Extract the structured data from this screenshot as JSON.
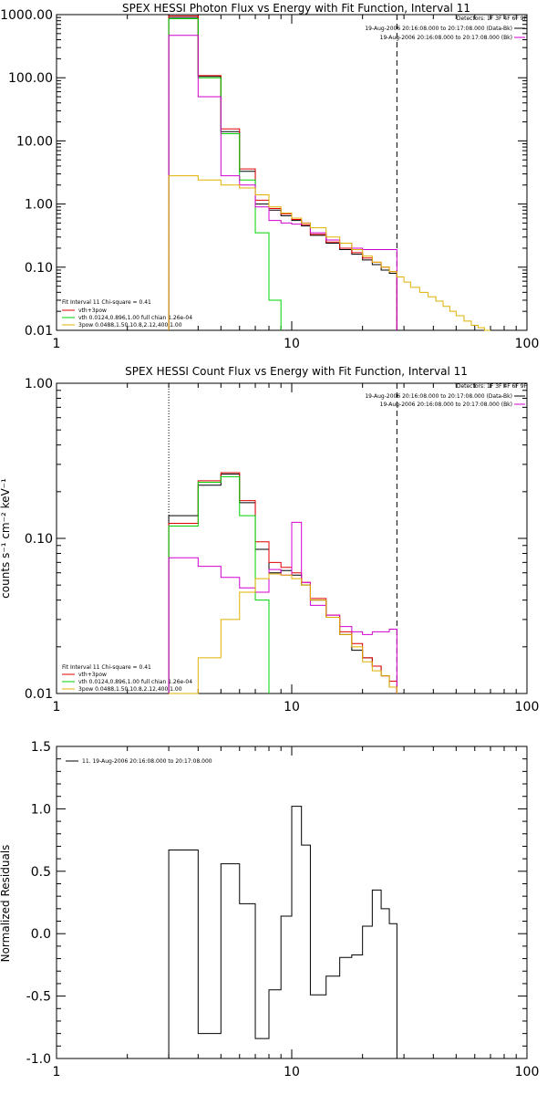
{
  "colors": {
    "data": "#000000",
    "total": "#e00000",
    "vth": "#00d000",
    "bkg": "#d000d0",
    "pow": "#e0b000"
  },
  "chart_data": [
    {
      "type": "line",
      "title": "SPEX HESSI Photon Flux vs Energy with Fit Function, Interval 11",
      "xlabel": "",
      "ylabel": "",
      "xlim": [
        1,
        100
      ],
      "ylim": [
        0.01,
        1000
      ],
      "xscale": "log",
      "yscale": "log",
      "xticks": [
        "1",
        "10",
        "100"
      ],
      "yticks": [
        "0.01",
        "0.10",
        "1.00",
        "10.00",
        "100.00",
        "1000.00"
      ],
      "vline_dotted": 3,
      "vline_dashed": 28,
      "legend_right": {
        "detectors": "Detectors: 1F 3F 4F 6F 9F",
        "line1": "19-Aug-2006 20:16:08.000 to 20:17:08.000 (Data-Bk)",
        "line2": "19-Aug-2006 20:16:08.000 to 20:17:08.000 (Bk)"
      },
      "legend_left": {
        "header": "Fit Interval 11     Chi-square = 0.41",
        "entries": [
          "vth+3pow",
          "vth 0.0124,0.896,1.00  full chian 1.26e-04",
          "3pow 0.0488,1.50,10.8,2.12,400,1.00"
        ]
      },
      "edges": [
        3,
        4,
        5,
        6,
        7,
        8,
        9,
        10,
        11,
        12,
        14,
        16,
        18,
        20,
        22,
        24,
        26,
        28,
        30,
        32,
        35,
        38,
        41,
        44,
        47,
        50,
        54,
        58,
        62,
        66,
        70
      ],
      "series": [
        {
          "name": "data",
          "color_key": "data",
          "bins": 17,
          "values": [
            900,
            105,
            14,
            3.3,
            1.0,
            0.8,
            0.65,
            0.55,
            0.45,
            0.32,
            0.24,
            0.19,
            0.16,
            0.13,
            0.11,
            0.09,
            0.08
          ]
        },
        {
          "name": "vth+3pow",
          "color_key": "total",
          "bins": 17,
          "values": [
            950,
            108,
            15.5,
            3.6,
            1.15,
            0.85,
            0.7,
            0.57,
            0.47,
            0.33,
            0.25,
            0.2,
            0.17,
            0.14,
            0.12,
            0.1,
            0.085
          ]
        },
        {
          "name": "vth",
          "color_key": "vth",
          "bins": 6,
          "values": [
            860,
            100,
            13,
            2.4,
            0.35,
            0.03
          ]
        },
        {
          "name": "bkg",
          "color_key": "bkg",
          "bins": 17,
          "values": [
            470,
            50,
            2.8,
            2.0,
            0.9,
            0.55,
            0.5,
            0.48,
            0.5,
            0.35,
            0.27,
            0.24,
            0.2,
            0.19,
            0.19,
            0.19,
            0.19
          ]
        },
        {
          "name": "3pow",
          "color_key": "pow",
          "bins": 30,
          "values": [
            2.8,
            2.4,
            2.0,
            1.8,
            1.4,
            0.9,
            0.72,
            0.6,
            0.5,
            0.42,
            0.3,
            0.24,
            0.19,
            0.15,
            0.12,
            0.1,
            0.085,
            0.07,
            0.058,
            0.048,
            0.04,
            0.034,
            0.029,
            0.024,
            0.02,
            0.017,
            0.014,
            0.012,
            0.011,
            0.01
          ]
        }
      ]
    },
    {
      "type": "line",
      "title": "SPEX HESSI Count Flux vs Energy with Fit Function, Interval 11",
      "xlabel": "",
      "ylabel": "counts s⁻¹ cm⁻² keV⁻¹",
      "xlim": [
        1,
        100
      ],
      "ylim": [
        0.01,
        1.0
      ],
      "xscale": "log",
      "yscale": "log",
      "xticks": [
        "1",
        "10",
        "100"
      ],
      "yticks": [
        "0.01",
        "0.10",
        "1.00"
      ],
      "vline_dotted": 3,
      "vline_dashed": 28,
      "legend_right": {
        "detectors": "Detectors: 1F 3F 4F 6F 9F",
        "line1": "19-Aug-2006 20:16:08.000 to 20:17:08.000 (Data-Bk)",
        "line2": "19-Aug-2006 20:16:08.000 to 20:17:08.000 (Bk)"
      },
      "legend_left": {
        "header": "Fit Interval 11     Chi-square = 0.41",
        "entries": [
          "vth+3pow",
          "vth 0.0124,0.896,1.00  full chian 1.26e-04",
          "3pow 0.0488,1.50,10.8,2.12,400,1.00"
        ]
      },
      "edges": [
        3,
        4,
        5,
        6,
        7,
        8,
        9,
        10,
        11,
        12,
        14,
        16,
        18,
        20,
        22,
        24,
        26,
        28
      ],
      "series": [
        {
          "name": "data",
          "color_key": "data",
          "bins": 17,
          "values": [
            0.14,
            0.22,
            0.26,
            0.17,
            0.085,
            0.06,
            0.062,
            0.058,
            0.05,
            0.04,
            0.031,
            0.024,
            0.019,
            0.017,
            0.015,
            0.013,
            0.011
          ]
        },
        {
          "name": "vth+3pow",
          "color_key": "total",
          "bins": 17,
          "values": [
            0.125,
            0.235,
            0.265,
            0.175,
            0.095,
            0.07,
            0.065,
            0.06,
            0.052,
            0.041,
            0.032,
            0.025,
            0.021,
            0.017,
            0.015,
            0.013,
            0.012
          ]
        },
        {
          "name": "vth",
          "color_key": "vth",
          "bins": 5,
          "values": [
            0.12,
            0.23,
            0.25,
            0.14,
            0.04
          ]
        },
        {
          "name": "bkg",
          "color_key": "bkg",
          "bins": 17,
          "values": [
            0.075,
            0.066,
            0.056,
            0.048,
            0.045,
            0.063,
            0.058,
            0.127,
            0.052,
            0.037,
            0.032,
            0.027,
            0.025,
            0.024,
            0.025,
            0.025,
            0.026
          ]
        },
        {
          "name": "3pow",
          "color_key": "pow",
          "bins": 17,
          "values": [
            0.01,
            0.017,
            0.03,
            0.045,
            0.055,
            0.059,
            0.058,
            0.055,
            0.05,
            0.04,
            0.031,
            0.024,
            0.02,
            0.016,
            0.014,
            0.013,
            0.011
          ]
        }
      ]
    },
    {
      "type": "line",
      "title": "",
      "xlabel": "",
      "ylabel": "Normalized Residuals",
      "xlim": [
        1,
        100
      ],
      "ylim": [
        -1.0,
        1.5
      ],
      "xscale": "log",
      "yscale": "linear",
      "xticks": [
        "1",
        "10",
        "100"
      ],
      "yticks": [
        "-1.0",
        "-0.5",
        "0.0",
        "0.5",
        "1.0",
        "1.5"
      ],
      "legend": "11. 19-Aug-2006 20:16:08.000 to 20:17:08.000",
      "edges": [
        3,
        4,
        5,
        6,
        7,
        8,
        9,
        10,
        11,
        12,
        14,
        16,
        18,
        20,
        22,
        24,
        26,
        28
      ],
      "series": [
        {
          "name": "residuals",
          "color_key": "data",
          "bins": 17,
          "values": [
            0.67,
            -0.8,
            0.56,
            0.24,
            -0.84,
            -0.45,
            0.14,
            1.02,
            0.71,
            -0.49,
            -0.34,
            -0.19,
            -0.17,
            0.06,
            0.35,
            0.2,
            0.08
          ]
        }
      ]
    }
  ]
}
